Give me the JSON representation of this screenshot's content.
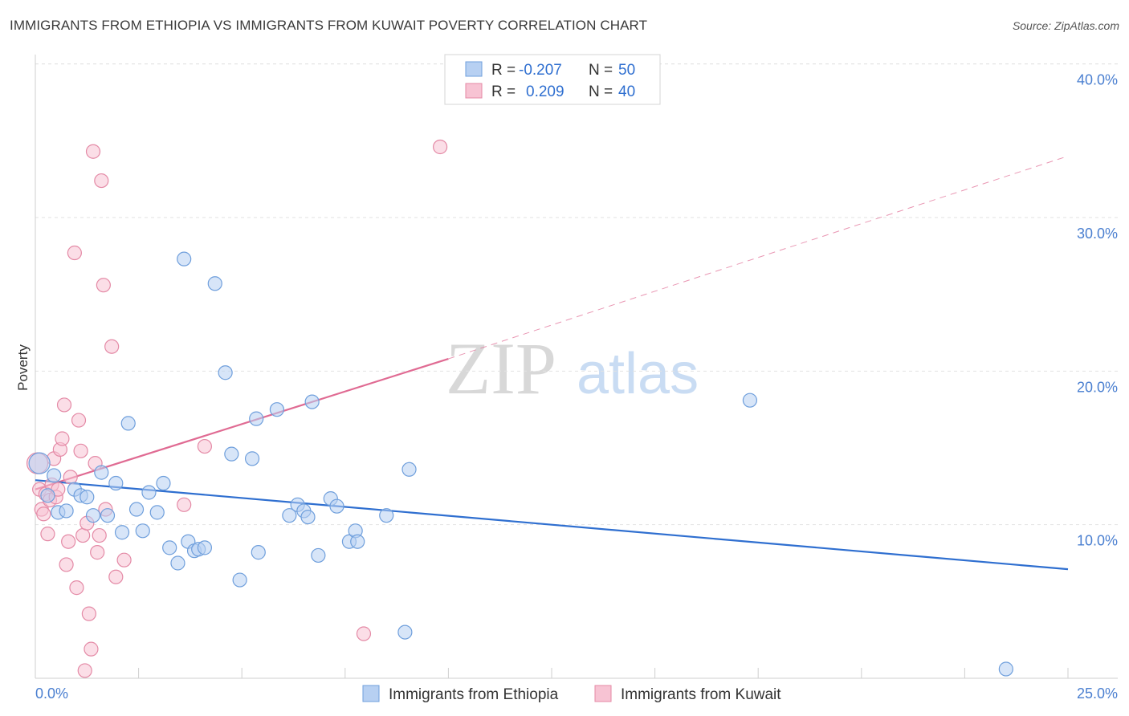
{
  "header": {
    "title": "IMMIGRANTS FROM ETHIOPIA VS IMMIGRANTS FROM KUWAIT POVERTY CORRELATION CHART",
    "source": "Source: ZipAtlas.com"
  },
  "watermark": {
    "zip": "ZIP",
    "atlas": "atlas"
  },
  "colors": {
    "ethiopia_fill": "#b7d0f2",
    "ethiopia_stroke": "#6f9fdc",
    "ethiopia_line": "#2f6fd0",
    "kuwait_fill": "#f7c3d3",
    "kuwait_stroke": "#e48aa6",
    "kuwait_line": "#e06b93",
    "grid": "#e2e2e2",
    "tick_label": "#4a7fd0"
  },
  "legend": {
    "rows": [
      {
        "r_label": "R =",
        "r_value": "-0.207",
        "n_label": "N =",
        "n_value": "50"
      },
      {
        "r_label": "R =",
        "r_value": "0.209",
        "n_label": "N =",
        "n_value": "40"
      }
    ]
  },
  "chart_data": {
    "type": "scatter",
    "title": "IMMIGRANTS FROM ETHIOPIA VS IMMIGRANTS FROM KUWAIT POVERTY CORRELATION CHART",
    "xlabel": "",
    "ylabel": "Poverty",
    "xlim": [
      0,
      25
    ],
    "ylim": [
      0,
      40
    ],
    "x_tick_labels": [
      "0.0%",
      "25.0%"
    ],
    "y_ticks": [
      10,
      20,
      30,
      40
    ],
    "y_tick_labels": [
      "10.0%",
      "20.0%",
      "30.0%",
      "40.0%"
    ],
    "grid": true,
    "series": [
      {
        "name": "Immigrants from Ethiopia",
        "r": -0.207,
        "n": 50,
        "trend": {
          "x": [
            0,
            25
          ],
          "y": [
            12.9,
            7.1
          ]
        },
        "points": [
          [
            0.1,
            14.0
          ],
          [
            0.3,
            11.9
          ],
          [
            0.45,
            13.2
          ],
          [
            0.55,
            10.8
          ],
          [
            0.75,
            10.9
          ],
          [
            0.95,
            12.3
          ],
          [
            1.1,
            11.9
          ],
          [
            1.25,
            11.8
          ],
          [
            1.4,
            10.6
          ],
          [
            1.6,
            13.4
          ],
          [
            1.75,
            10.6
          ],
          [
            1.95,
            12.7
          ],
          [
            2.1,
            9.5
          ],
          [
            2.25,
            16.6
          ],
          [
            2.45,
            11.0
          ],
          [
            2.6,
            9.6
          ],
          [
            2.75,
            12.1
          ],
          [
            2.95,
            10.8
          ],
          [
            3.1,
            12.7
          ],
          [
            3.25,
            8.5
          ],
          [
            3.45,
            7.5
          ],
          [
            3.6,
            27.3
          ],
          [
            3.7,
            8.9
          ],
          [
            3.85,
            8.3
          ],
          [
            3.95,
            8.4
          ],
          [
            4.1,
            8.5
          ],
          [
            4.35,
            25.7
          ],
          [
            4.6,
            19.9
          ],
          [
            4.75,
            14.6
          ],
          [
            4.95,
            6.4
          ],
          [
            5.25,
            14.3
          ],
          [
            5.4,
            8.2
          ],
          [
            5.35,
            16.9
          ],
          [
            5.85,
            17.5
          ],
          [
            6.15,
            10.6
          ],
          [
            6.35,
            11.3
          ],
          [
            6.5,
            10.9
          ],
          [
            6.6,
            10.5
          ],
          [
            6.7,
            18.0
          ],
          [
            6.85,
            8.0
          ],
          [
            7.15,
            11.7
          ],
          [
            7.3,
            11.2
          ],
          [
            7.6,
            8.9
          ],
          [
            7.75,
            9.6
          ],
          [
            7.8,
            8.9
          ],
          [
            8.5,
            10.6
          ],
          [
            8.95,
            3.0
          ],
          [
            9.05,
            13.6
          ],
          [
            17.3,
            18.1
          ],
          [
            23.5,
            0.6
          ]
        ]
      },
      {
        "name": "Immigrants from Kuwait",
        "r": 0.209,
        "n": 40,
        "trend": {
          "x": [
            0,
            10
          ],
          "y": [
            12.3,
            20.8
          ]
        },
        "trend_extension": {
          "x": [
            10,
            25
          ],
          "y": [
            20.8,
            34.0
          ]
        },
        "points": [
          [
            0.1,
            12.3
          ],
          [
            0.15,
            11.0
          ],
          [
            0.2,
            10.7
          ],
          [
            0.25,
            12.0
          ],
          [
            0.3,
            9.4
          ],
          [
            0.35,
            11.6
          ],
          [
            0.4,
            12.6
          ],
          [
            0.45,
            14.3
          ],
          [
            0.5,
            11.8
          ],
          [
            0.55,
            12.3
          ],
          [
            0.6,
            14.9
          ],
          [
            0.65,
            15.6
          ],
          [
            0.7,
            17.8
          ],
          [
            0.75,
            7.4
          ],
          [
            0.8,
            8.9
          ],
          [
            0.85,
            13.1
          ],
          [
            0.95,
            27.7
          ],
          [
            1.0,
            5.9
          ],
          [
            1.05,
            16.8
          ],
          [
            1.1,
            14.8
          ],
          [
            1.15,
            9.3
          ],
          [
            1.2,
            0.5
          ],
          [
            1.25,
            10.1
          ],
          [
            1.3,
            4.2
          ],
          [
            1.35,
            1.9
          ],
          [
            1.4,
            34.3
          ],
          [
            1.45,
            14.0
          ],
          [
            1.5,
            8.2
          ],
          [
            1.55,
            9.3
          ],
          [
            1.6,
            32.4
          ],
          [
            1.65,
            25.6
          ],
          [
            1.7,
            11.0
          ],
          [
            1.85,
            21.6
          ],
          [
            1.95,
            6.6
          ],
          [
            2.15,
            7.7
          ],
          [
            3.6,
            11.3
          ],
          [
            4.1,
            15.1
          ],
          [
            7.95,
            2.9
          ],
          [
            9.8,
            34.6
          ],
          [
            0.05,
            14.0
          ]
        ]
      }
    ]
  }
}
